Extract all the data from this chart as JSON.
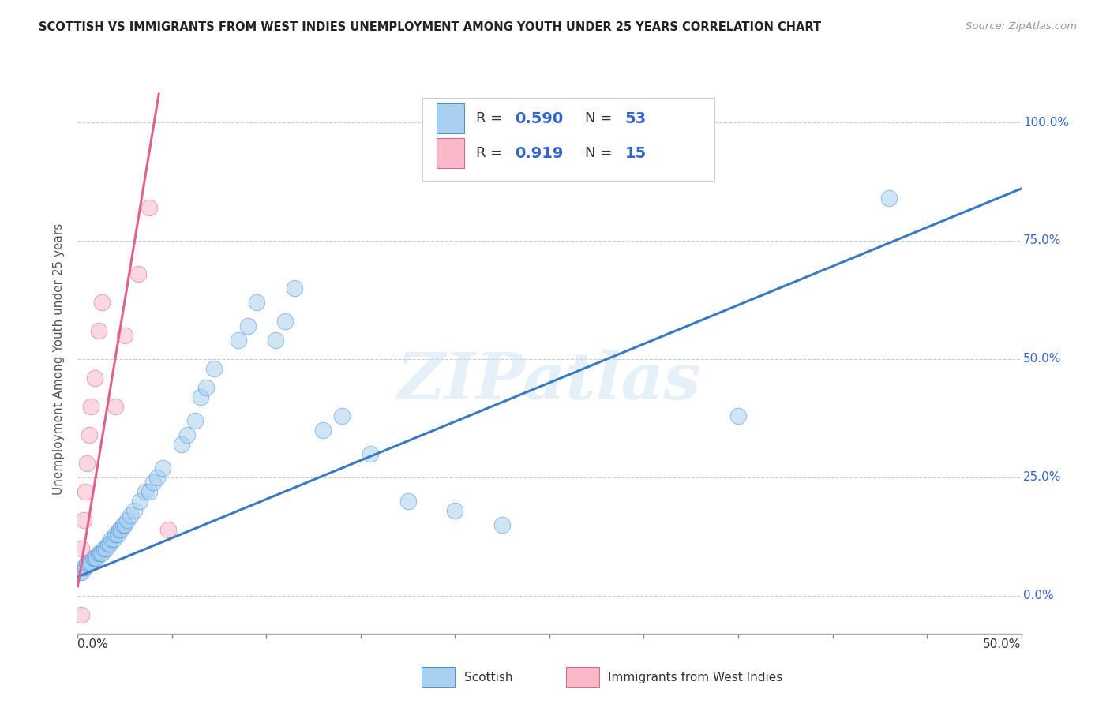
{
  "title": "SCOTTISH VS IMMIGRANTS FROM WEST INDIES UNEMPLOYMENT AMONG YOUTH UNDER 25 YEARS CORRELATION CHART",
  "source": "Source: ZipAtlas.com",
  "ylabel": "Unemployment Among Youth under 25 years",
  "xlim": [
    0.0,
    0.5
  ],
  "ylim": [
    -0.08,
    1.08
  ],
  "yticks_right": [
    0.0,
    0.25,
    0.5,
    0.75,
    1.0
  ],
  "ytick_labels_right": [
    "0.0%",
    "25.0%",
    "50.0%",
    "75.0%",
    "100.0%"
  ],
  "watermark": "ZIPatlas",
  "blue_color": "#a8d0f0",
  "blue_edge_color": "#4a90d9",
  "blue_line_color": "#3a7abf",
  "pink_color": "#f8b8c8",
  "pink_edge_color": "#e06090",
  "pink_line_color": "#e06090",
  "legend_text_color": "#3366cc",
  "title_color": "#222222",
  "blue_scatter_x": [
    0.001,
    0.002,
    0.003,
    0.004,
    0.005,
    0.006,
    0.007,
    0.008,
    0.009,
    0.01,
    0.011,
    0.012,
    0.013,
    0.014,
    0.015,
    0.016,
    0.017,
    0.018,
    0.019,
    0.02,
    0.021,
    0.022,
    0.023,
    0.024,
    0.025,
    0.026,
    0.028,
    0.03,
    0.033,
    0.036,
    0.038,
    0.04,
    0.042,
    0.045,
    0.055,
    0.058,
    0.062,
    0.065,
    0.068,
    0.072,
    0.085,
    0.09,
    0.095,
    0.105,
    0.11,
    0.115,
    0.13,
    0.14,
    0.155,
    0.175,
    0.2,
    0.225,
    0.35,
    0.43
  ],
  "blue_scatter_y": [
    0.05,
    0.05,
    0.06,
    0.06,
    0.07,
    0.07,
    0.07,
    0.08,
    0.08,
    0.08,
    0.09,
    0.09,
    0.09,
    0.1,
    0.1,
    0.11,
    0.11,
    0.12,
    0.12,
    0.13,
    0.13,
    0.14,
    0.14,
    0.15,
    0.15,
    0.16,
    0.17,
    0.18,
    0.2,
    0.22,
    0.22,
    0.24,
    0.25,
    0.27,
    0.32,
    0.34,
    0.37,
    0.42,
    0.44,
    0.48,
    0.54,
    0.57,
    0.62,
    0.54,
    0.58,
    0.65,
    0.35,
    0.38,
    0.3,
    0.2,
    0.18,
    0.15,
    0.38,
    0.84
  ],
  "pink_scatter_x": [
    0.002,
    0.003,
    0.004,
    0.005,
    0.006,
    0.007,
    0.009,
    0.011,
    0.013,
    0.02,
    0.025,
    0.032,
    0.038,
    0.048,
    0.002
  ],
  "pink_scatter_y": [
    0.1,
    0.16,
    0.22,
    0.28,
    0.34,
    0.4,
    0.46,
    0.56,
    0.62,
    0.4,
    0.55,
    0.68,
    0.82,
    0.14,
    -0.04
  ],
  "blue_line_x0": 0.0,
  "blue_line_x1": 0.5,
  "blue_line_y0": 0.04,
  "blue_line_y1": 0.86,
  "pink_line_x0": 0.0,
  "pink_line_x1": 0.043,
  "pink_line_y0": 0.02,
  "pink_line_y1": 1.06,
  "grid_color": "#cccccc",
  "background_color": "#ffffff"
}
